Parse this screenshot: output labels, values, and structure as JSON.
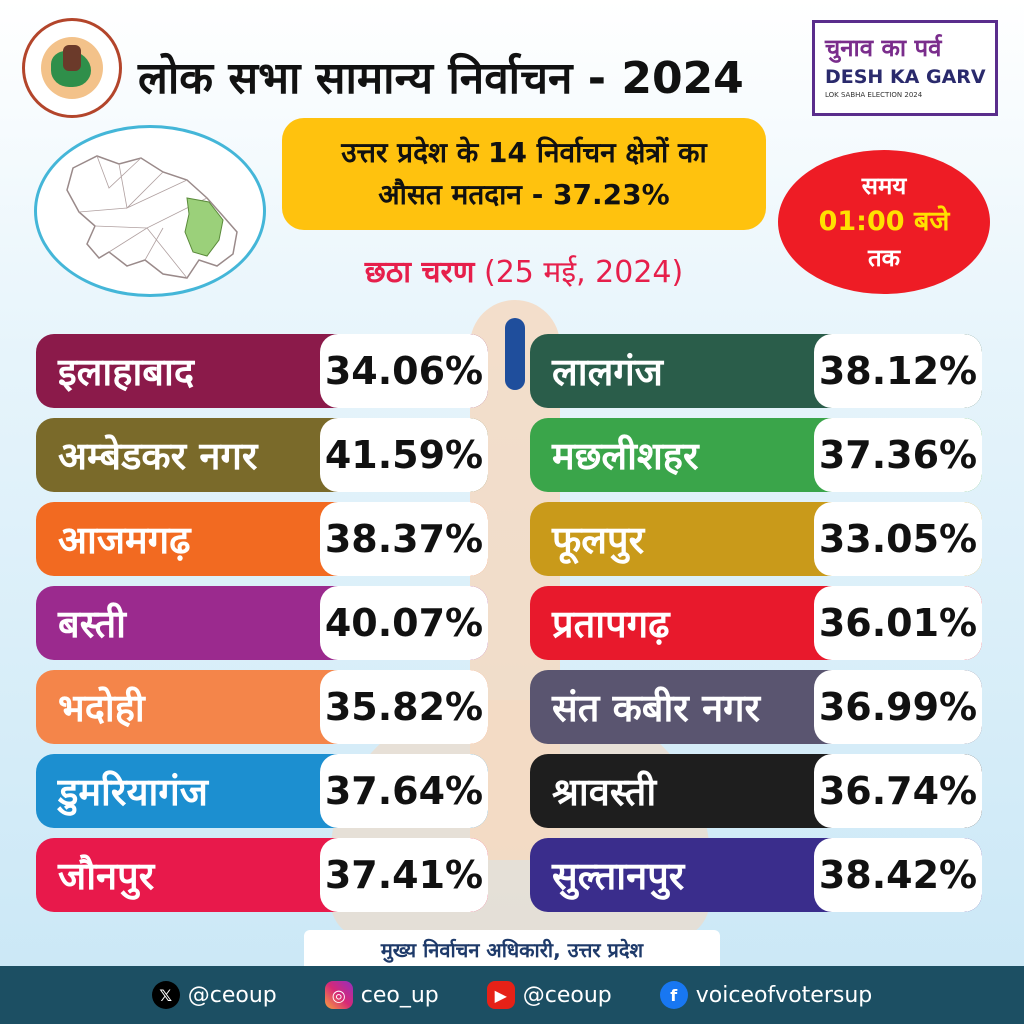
{
  "header": {
    "title": "लोक सभा सामान्य निर्वाचन - 2024"
  },
  "logo": {
    "hindi": "चुनाव का पर्व",
    "english": "DESH KA GARV",
    "sub": "LOK SABHA ELECTION 2024"
  },
  "average": {
    "line1": "उत्तर प्रदेश के 14 निर्वाचन क्षेत्रों का",
    "line2": "औसत मतदान - 37.23%"
  },
  "phase": {
    "name": "छठा चरण",
    "date": "(25 मई, 2024)"
  },
  "time": {
    "label": "समय",
    "value": "01:00 बजे",
    "suffix": "तक"
  },
  "constituencies_left": [
    {
      "name": "इलाहाबाद",
      "pct": "34.06%",
      "color": "#8b1a4a"
    },
    {
      "name": "अम्बेडकर नगर",
      "pct": "41.59%",
      "color": "#7a6a2a"
    },
    {
      "name": "आजमगढ़",
      "pct": "38.37%",
      "color": "#f26a21"
    },
    {
      "name": "बस्ती",
      "pct": "40.07%",
      "color": "#9b2a8e"
    },
    {
      "name": "भदोही",
      "pct": "35.82%",
      "color": "#f4854a"
    },
    {
      "name": "डुमरियागंज",
      "pct": "37.64%",
      "color": "#1c8fd0"
    },
    {
      "name": "जौनपुर",
      "pct": "37.41%",
      "color": "#e8194b"
    }
  ],
  "constituencies_right": [
    {
      "name": "लालगंज",
      "pct": "38.12%",
      "color": "#2a5d4a"
    },
    {
      "name": "मछलीशहर",
      "pct": "37.36%",
      "color": "#3aa54a"
    },
    {
      "name": "फूलपुर",
      "pct": "33.05%",
      "color": "#c99a1a"
    },
    {
      "name": "प्रतापगढ़",
      "pct": "36.01%",
      "color": "#e8192c"
    },
    {
      "name": "संत कबीर नगर",
      "pct": "36.99%",
      "color": "#5a5570"
    },
    {
      "name": "श्रावस्ती",
      "pct": "36.74%",
      "color": "#1e1e1e"
    },
    {
      "name": "सुल्तानपुर",
      "pct": "38.42%",
      "color": "#3a2d8c"
    }
  ],
  "footer": {
    "label": "मुख्य निर्वाचन अधिकारी, उत्तर प्रदेश",
    "x": "@ceoup",
    "instagram": "ceo_up",
    "youtube": "@ceoup",
    "facebook": "voiceofvotersup"
  }
}
